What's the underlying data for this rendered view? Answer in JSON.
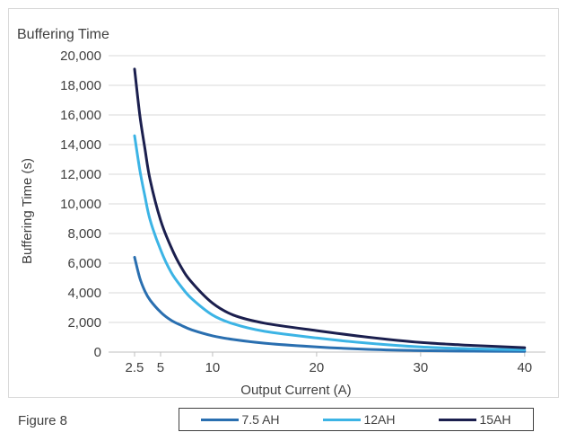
{
  "figure_label": "Figure 8",
  "chart_data": {
    "type": "line",
    "title": "Buffering Time",
    "xlabel": "Output Current (A)",
    "ylabel": "Buffering Time (s)",
    "xlim": [
      0,
      42
    ],
    "ylim": [
      0,
      20000
    ],
    "xticks": [
      2.5,
      5,
      10,
      20,
      30,
      40
    ],
    "xtick_labels": [
      "2.5",
      "5",
      "10",
      "20",
      "30",
      "40"
    ],
    "yticks": [
      0,
      2000,
      4000,
      6000,
      8000,
      10000,
      12000,
      14000,
      16000,
      18000,
      20000
    ],
    "ytick_labels": [
      "0",
      "2,000",
      "4,000",
      "6,000",
      "8,000",
      "10,000",
      "12,000",
      "14,000",
      "16,000",
      "18,000",
      "20,000"
    ],
    "grid": "horizontal",
    "legend_position": "bottom",
    "series": [
      {
        "name": "7.5 AH",
        "color": "#2a6fb0",
        "x": [
          2.5,
          3,
          3.5,
          4,
          5,
          6,
          7,
          8,
          10,
          12,
          15,
          20,
          25,
          30,
          35,
          40
        ],
        "y": [
          6400,
          5000,
          4100,
          3500,
          2700,
          2150,
          1800,
          1500,
          1100,
          850,
          600,
          350,
          180,
          100,
          60,
          40
        ]
      },
      {
        "name": "12AH",
        "color": "#3cb4e5",
        "x": [
          2.5,
          3,
          3.5,
          4,
          5,
          6,
          7,
          8,
          10,
          12,
          15,
          20,
          25,
          30,
          35,
          40
        ],
        "y": [
          14600,
          12300,
          10500,
          8900,
          6900,
          5400,
          4400,
          3600,
          2500,
          1900,
          1400,
          950,
          600,
          350,
          220,
          150
        ]
      },
      {
        "name": "15AH",
        "color": "#1b1f4e",
        "x": [
          2.5,
          3,
          3.5,
          4,
          5,
          6,
          7,
          8,
          10,
          12,
          15,
          20,
          25,
          30,
          35,
          40
        ],
        "y": [
          19100,
          16000,
          13700,
          11600,
          8900,
          7100,
          5700,
          4700,
          3300,
          2500,
          1950,
          1450,
          1000,
          650,
          450,
          300
        ]
      }
    ]
  }
}
